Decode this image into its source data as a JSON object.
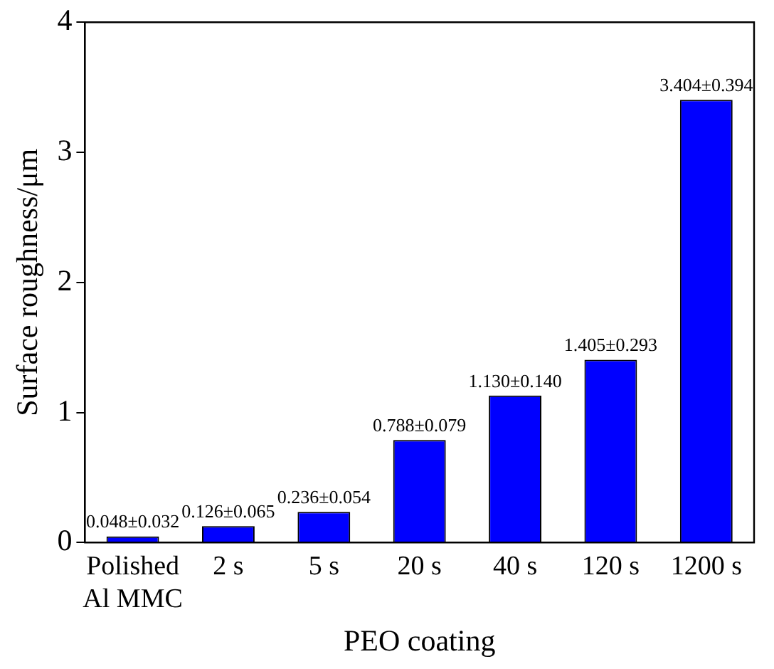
{
  "chart_data": {
    "type": "bar",
    "xlabel": "PEO coating",
    "ylabel": "Surface roughness/μm",
    "categories": [
      "Polished\nAl MMC",
      "2 s",
      "5 s",
      "20 s",
      "40 s",
      "120 s",
      "1200 s"
    ],
    "values": [
      0.048,
      0.126,
      0.236,
      0.788,
      1.13,
      1.405,
      3.404
    ],
    "value_labels": [
      "0.048±0.032",
      "0.126±0.065",
      "0.236±0.054",
      "0.788±0.079",
      "1.130±0.140",
      "1.405±0.293",
      "3.404±0.394"
    ],
    "color": "#0000ff",
    "ylim": [
      0,
      4
    ],
    "yticks": [
      0,
      1,
      2,
      3,
      4
    ],
    "grid": false,
    "legend": false
  }
}
